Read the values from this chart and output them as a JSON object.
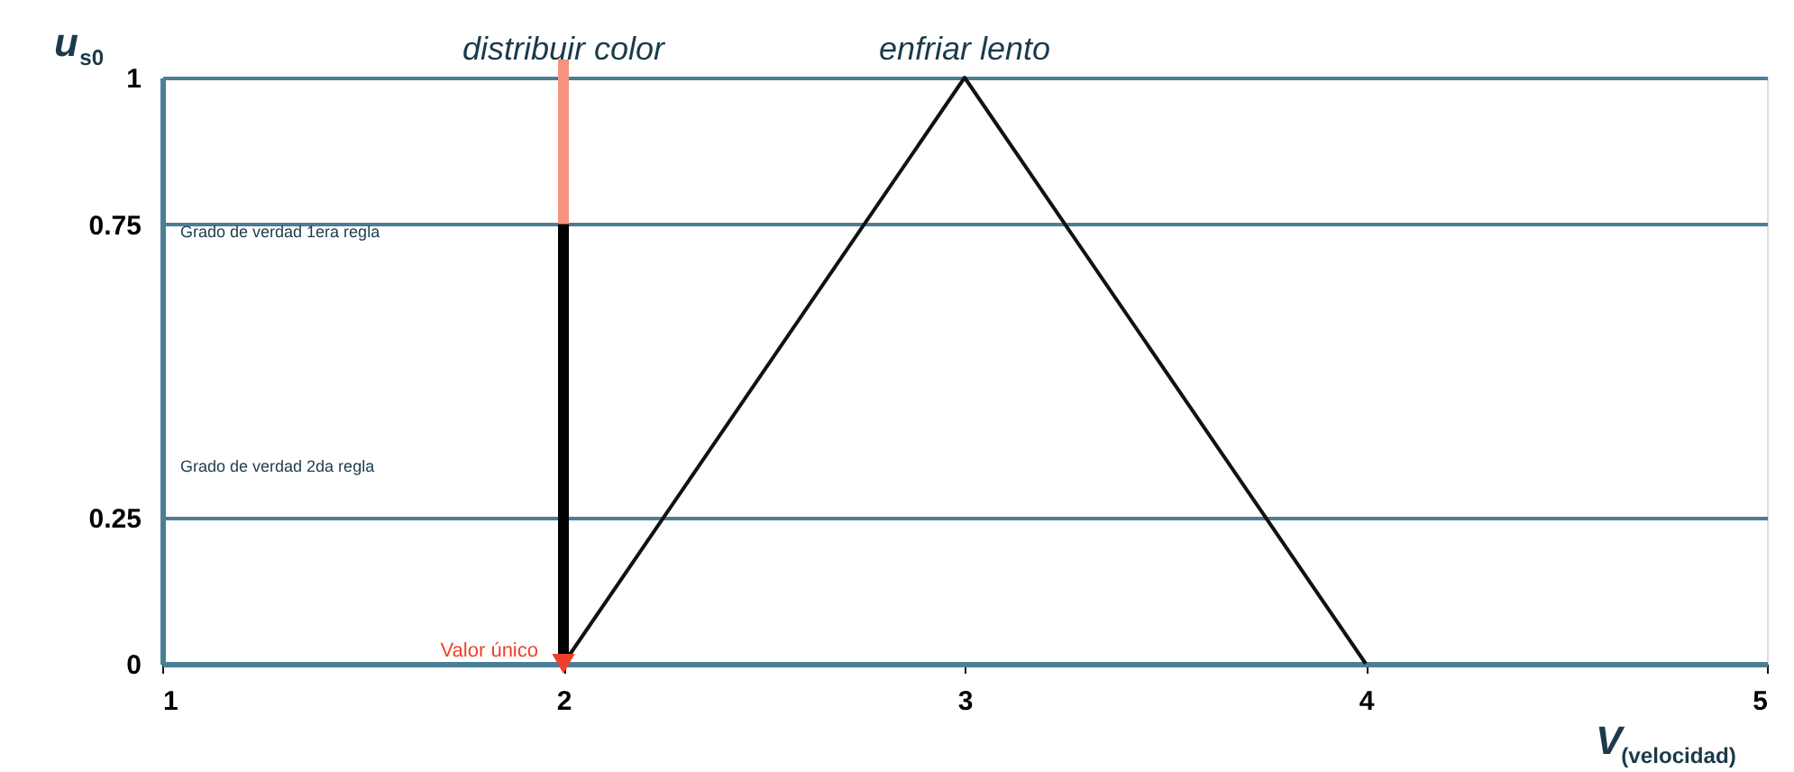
{
  "chart_data": {
    "type": "line",
    "xlabel": "V$_{(velocidad)}$",
    "ylabel": "u$_{s0}$",
    "xlim": [
      1,
      5
    ],
    "xticks": [
      1,
      2,
      3,
      4,
      5
    ],
    "ylim": [
      0,
      1
    ],
    "yticks": [
      0,
      0.25,
      0.75,
      1
    ],
    "grid": "y",
    "line_style": "solid",
    "series": [
      {
        "x": [
          2,
          3,
          4
        ],
        "values": [
          0,
          1,
          0
        ],
        "color": "#111111"
      },
      {
        "type": "line",
        "x": [
          2,
          2
        ],
        "values": [
          0,
          0.75
        ],
        "color": "#000000"
      },
      {
        "type": "scatter",
        "marker": "triangle",
        "x": [
          2
        ],
        "values": [
          0
        ],
        "color": "#f0402c"
      }
    ],
    "ref_lines": [
      {
        "axis": "x",
        "value": 2,
        "color": "#f5937f"
      }
    ],
    "annotations": [
      "distribuir color",
      "enfriar lento",
      "Grado de verdad 1era regla",
      "Grado de verdad 2da regla",
      {
        "text": "Valor único",
        "x": 2,
        "y": 0
      }
    ]
  }
}
